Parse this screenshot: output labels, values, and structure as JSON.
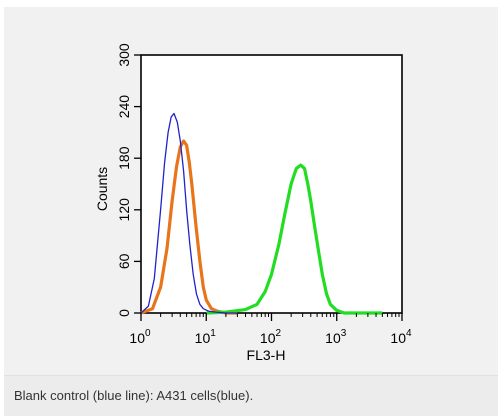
{
  "chart_data": {
    "type": "line",
    "title": "",
    "xlabel": "FL3-H",
    "ylabel": "Counts",
    "x_scale": "log",
    "xlim": [
      1,
      10000
    ],
    "ylim": [
      0,
      300
    ],
    "x_ticks": [
      {
        "value": 1,
        "base": "10",
        "exp": "0"
      },
      {
        "value": 10,
        "base": "10",
        "exp": "1"
      },
      {
        "value": 100,
        "base": "10",
        "exp": "2"
      },
      {
        "value": 1000,
        "base": "10",
        "exp": "3"
      },
      {
        "value": 10000,
        "base": "10",
        "exp": "4"
      }
    ],
    "y_ticks": [
      "0",
      "60",
      "120",
      "180",
      "240",
      "300"
    ],
    "grid": false,
    "legend": "none",
    "series": [
      {
        "color": "#2222cc",
        "stroke": "thin",
        "x": [
          1,
          1.3,
          1.6,
          2.0,
          2.3,
          2.6,
          2.9,
          3.2,
          3.6,
          4.0,
          4.5,
          5.0,
          5.6,
          6.3,
          7.1,
          8.0,
          9.0,
          11,
          14,
          20,
          30
        ],
        "y": [
          0,
          8,
          40,
          120,
          175,
          210,
          228,
          232,
          222,
          200,
          165,
          120,
          80,
          45,
          22,
          10,
          5,
          2,
          1,
          0,
          0
        ]
      },
      {
        "color": "#e8751a",
        "stroke": "thick",
        "x": [
          1,
          1.5,
          2.0,
          2.5,
          3.0,
          3.5,
          4.0,
          4.5,
          5.0,
          5.5,
          6.0,
          7.0,
          8.0,
          9.0,
          10,
          12,
          15,
          20,
          30
        ],
        "y": [
          0,
          5,
          30,
          75,
          130,
          170,
          193,
          200,
          195,
          175,
          150,
          100,
          60,
          30,
          15,
          5,
          2,
          0,
          0
        ]
      },
      {
        "color": "#22dd22",
        "stroke": "thick",
        "x": [
          10,
          20,
          40,
          60,
          80,
          100,
          130,
          160,
          200,
          240,
          280,
          320,
          360,
          400,
          460,
          530,
          600,
          700,
          800,
          1000,
          1300,
          2000,
          5000
        ],
        "y": [
          0,
          1,
          4,
          10,
          25,
          45,
          80,
          115,
          150,
          168,
          172,
          168,
          150,
          130,
          100,
          70,
          45,
          22,
          10,
          3,
          0,
          0,
          0
        ]
      }
    ]
  },
  "caption": "Blank control (blue line): A431 cells(blue)."
}
